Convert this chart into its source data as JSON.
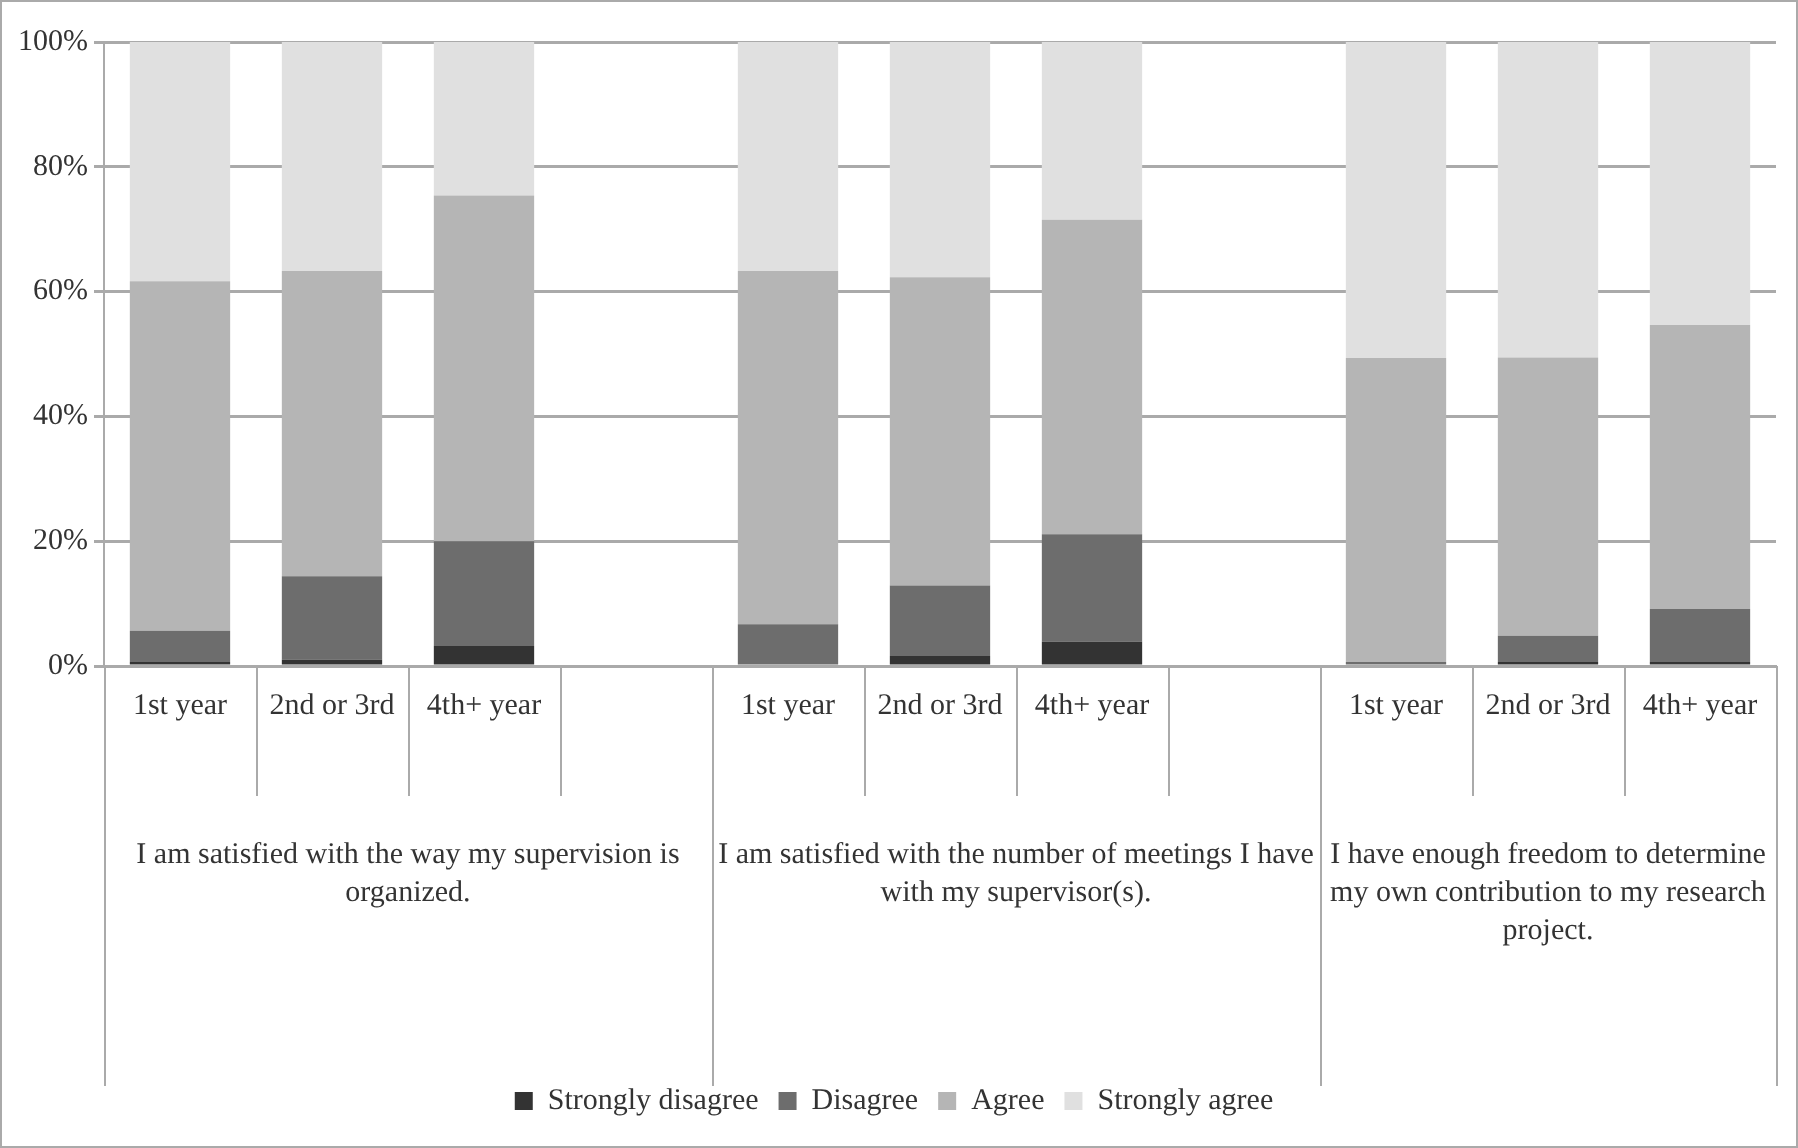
{
  "chart_data": {
    "type": "bar",
    "stacked": true,
    "categories": [
      "1st year",
      "2nd or 3rd",
      "4th+ year",
      null,
      "1st year",
      "2nd or 3rd",
      "4th+ year",
      null,
      "1st year",
      "2nd or 3rd",
      "4th+ year"
    ],
    "series": [
      {
        "name": "Strongly disagree",
        "color": "#333333",
        "values": [
          0.4,
          1.0,
          3.2,
          null,
          null,
          1.6,
          3.9,
          null,
          null,
          0.3,
          0.4
        ]
      },
      {
        "name": "Disagree",
        "color": "#6d6d6d",
        "values": [
          5.0,
          13.4,
          16.8,
          null,
          6.7,
          11.3,
          17.2,
          null,
          0.3,
          4.2,
          8.5
        ]
      },
      {
        "name": "Agree",
        "color": "#b5b5b5",
        "values": [
          56.0,
          48.9,
          55.4,
          null,
          56.6,
          49.4,
          50.4,
          null,
          48.7,
          44.6,
          45.5
        ]
      },
      {
        "name": "Strongly agree",
        "color": "#e0e0e0",
        "values": [
          38.6,
          36.7,
          24.6,
          null,
          36.7,
          37.7,
          28.5,
          null,
          51.0,
          50.9,
          45.6
        ]
      }
    ],
    "ylim": [
      0,
      100
    ],
    "yticks": [
      {
        "value": 0,
        "label": "0%"
      },
      {
        "value": 20,
        "label": "20%"
      },
      {
        "value": 40,
        "label": "40%"
      },
      {
        "value": 60,
        "label": "60%"
      },
      {
        "value": 80,
        "label": "80%"
      },
      {
        "value": 100,
        "label": "100%"
      }
    ],
    "grid": "y",
    "legend": "bottom",
    "annotations": [
      "I am satisfied with the way my supervision is organized.",
      "I am satisfied with the number of meetings I have with my supervisor(s).",
      "I have enough freedom to determine my own contribution to my research project."
    ]
  }
}
